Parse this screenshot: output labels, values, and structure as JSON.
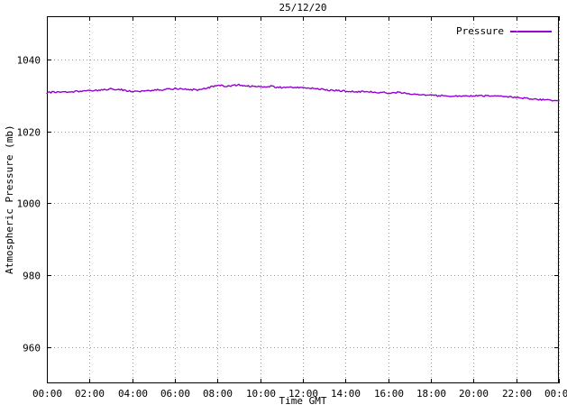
{
  "title": "25/12/20",
  "legend": {
    "label": "Pressure"
  },
  "colors": {
    "line": "#9400d3",
    "grid": "#9e9e9e",
    "border": "#000000",
    "text": "#000000",
    "background": "#ffffff"
  },
  "chart_data": {
    "type": "line",
    "title": "25/12/20",
    "xlabel": "Time GMT",
    "ylabel": "Atmospheric Pressure (mb)",
    "grid": true,
    "legend_position": "top-right",
    "xlim": [
      0,
      24
    ],
    "ylim": [
      950,
      1052
    ],
    "x_tick_labels": [
      "00:00",
      "02:00",
      "04:00",
      "06:00",
      "08:00",
      "10:00",
      "12:00",
      "14:00",
      "16:00",
      "18:00",
      "20:00",
      "22:00",
      "00:00"
    ],
    "x_tick_hours": [
      0,
      2,
      4,
      6,
      8,
      10,
      12,
      14,
      16,
      18,
      20,
      22,
      24
    ],
    "y_ticks": [
      960,
      980,
      1000,
      1020,
      1040
    ],
    "series": [
      {
        "name": "Pressure",
        "x": [
          0,
          0.5,
          1,
          1.5,
          2,
          2.5,
          3,
          3.5,
          4,
          4.5,
          5,
          5.5,
          6,
          6.5,
          7,
          7.5,
          8,
          8.5,
          9,
          9.5,
          10,
          10.5,
          11,
          11.5,
          12,
          12.5,
          13,
          13.5,
          14,
          14.5,
          15,
          15.5,
          16,
          16.5,
          17,
          17.5,
          18,
          18.5,
          19,
          19.5,
          20,
          20.5,
          21,
          21.5,
          22,
          22.5,
          23,
          23.5,
          24
        ],
        "values": [
          1030.8,
          1031.0,
          1030.9,
          1031.2,
          1031.3,
          1031.5,
          1031.8,
          1031.6,
          1031.0,
          1031.2,
          1031.4,
          1031.6,
          1031.9,
          1031.8,
          1031.5,
          1032.0,
          1032.8,
          1032.5,
          1032.9,
          1032.6,
          1032.4,
          1032.5,
          1032.2,
          1032.3,
          1032.1,
          1031.9,
          1031.6,
          1031.4,
          1031.2,
          1031.1,
          1031.0,
          1030.9,
          1030.7,
          1030.8,
          1030.4,
          1030.2,
          1030.0,
          1029.9,
          1029.8,
          1029.9,
          1029.8,
          1029.9,
          1029.8,
          1029.6,
          1029.4,
          1029.2,
          1028.9,
          1028.7,
          1028.5
        ]
      }
    ]
  }
}
